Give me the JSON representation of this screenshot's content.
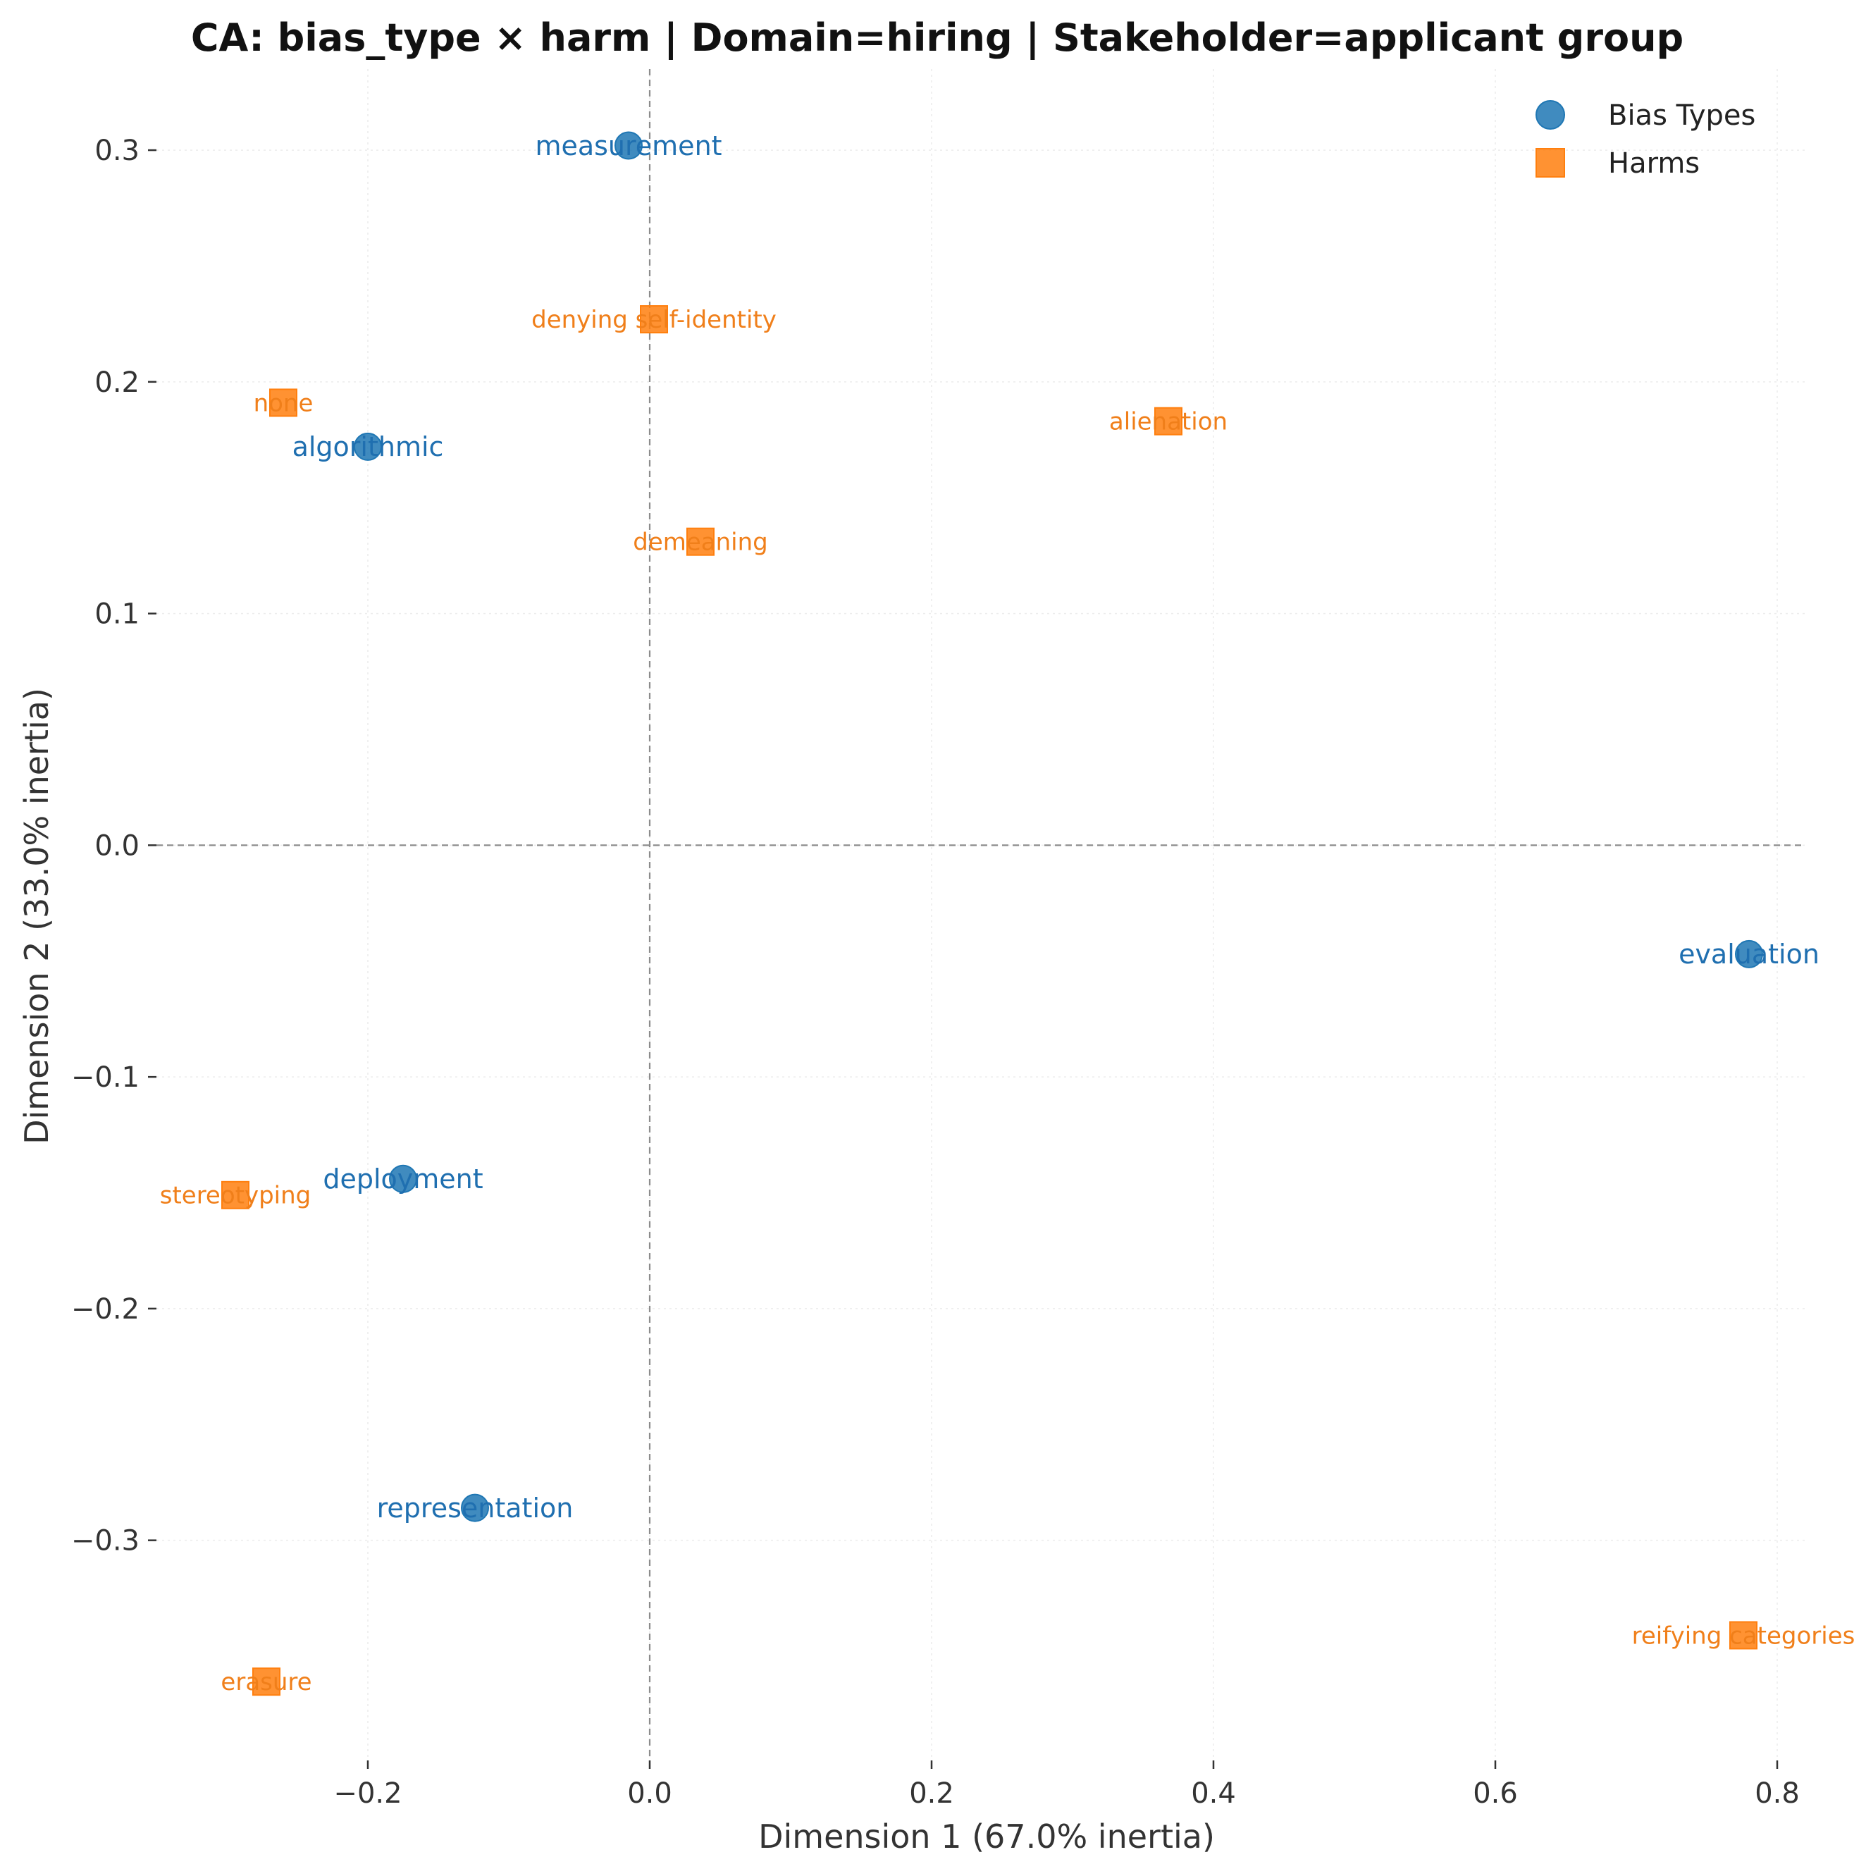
{
  "chart_data": {
    "type": "scatter",
    "title": "CA: bias_type × harm | Domain=hiring | Stakeholder=applicant group",
    "xlabel": "Dimension 1 (67.0% inertia)",
    "ylabel": "Dimension 2 (33.0% inertia)",
    "xlim": [
      -0.35,
      0.82
    ],
    "ylim": [
      -0.395,
      0.335
    ],
    "xticks": [
      -0.2,
      0.0,
      0.2,
      0.4,
      0.6,
      0.8
    ],
    "xtick_labels": [
      "−0.2",
      "0.0",
      "0.2",
      "0.4",
      "0.6",
      "0.8"
    ],
    "yticks": [
      -0.3,
      -0.2,
      -0.1,
      0.0,
      0.1,
      0.2,
      0.3
    ],
    "ytick_labels": [
      "−0.3",
      "−0.2",
      "−0.1",
      "0.0",
      "0.1",
      "0.2",
      "0.3"
    ],
    "grid": true,
    "reference_lines": {
      "x": 0.0,
      "y": 0.0
    },
    "legend_position": "top-right",
    "series": [
      {
        "name": "Bias Types",
        "marker": "circle",
        "color": "#1f77b4",
        "label_color": "#1f6fb0",
        "points": [
          {
            "label": "measurement",
            "x": -0.015,
            "y": 0.302
          },
          {
            "label": "algorithmic",
            "x": -0.2,
            "y": 0.172
          },
          {
            "label": "evaluation",
            "x": 0.78,
            "y": -0.047
          },
          {
            "label": "deployment",
            "x": -0.175,
            "y": -0.144
          },
          {
            "label": "representation",
            "x": -0.124,
            "y": -0.286
          }
        ]
      },
      {
        "name": "Harms",
        "marker": "square",
        "color": "#ff7f0e",
        "label_color": "#f07f1a",
        "points": [
          {
            "label": "denying self-identity",
            "x": 0.003,
            "y": 0.227
          },
          {
            "label": "none",
            "x": -0.26,
            "y": 0.191
          },
          {
            "label": "alienation",
            "x": 0.368,
            "y": 0.183
          },
          {
            "label": "demeaning",
            "x": 0.036,
            "y": 0.131
          },
          {
            "label": "stereotyping",
            "x": -0.294,
            "y": -0.151
          },
          {
            "label": "reifying categories",
            "x": 0.776,
            "y": -0.341
          },
          {
            "label": "erasure",
            "x": -0.272,
            "y": -0.361
          }
        ]
      }
    ]
  }
}
